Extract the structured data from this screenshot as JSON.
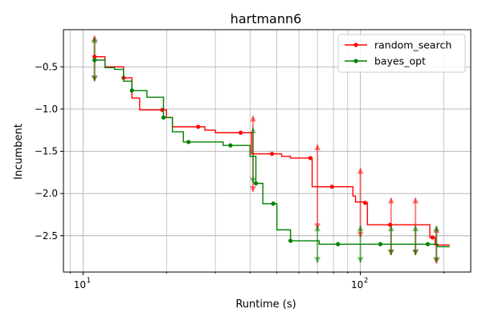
{
  "chart_data": {
    "type": "line",
    "title": "hartmann6",
    "xlabel": "Runtime (s)",
    "ylabel": "Incumbent",
    "x_scale": "log",
    "xlim": [
      8.5,
      250
    ],
    "ylim": [
      -2.93,
      -0.06
    ],
    "x_ticks": [
      {
        "value": 10,
        "label": "10",
        "sup": "1"
      },
      {
        "value": 100,
        "label": "10",
        "sup": "2"
      }
    ],
    "y_ticks": [
      -0.5,
      -1.0,
      -1.5,
      -2.0,
      -2.5
    ],
    "y_tick_labels": [
      "−0.5",
      "−1.0",
      "−1.5",
      "−2.0",
      "−2.5"
    ],
    "grid": true,
    "legend_position": "top-right",
    "series": [
      {
        "name": "random_search",
        "color": "#ff0000",
        "steps": [
          [
            11,
            -0.38
          ],
          [
            12,
            -0.5
          ],
          [
            14,
            -0.63
          ],
          [
            15,
            -0.87
          ],
          [
            16,
            -1.01
          ],
          [
            19,
            -1.01
          ],
          [
            19.3,
            -1.01
          ],
          [
            20,
            -1.1
          ],
          [
            21,
            -1.21
          ],
          [
            26,
            -1.21
          ],
          [
            27.5,
            -1.25
          ],
          [
            30,
            -1.28
          ],
          [
            37,
            -1.28
          ],
          [
            40.5,
            -1.53
          ],
          [
            48,
            -1.53
          ],
          [
            52,
            -1.56
          ],
          [
            56,
            -1.58
          ],
          [
            66,
            -1.58
          ],
          [
            67,
            -1.92
          ],
          [
            79,
            -1.92
          ],
          [
            94,
            -2.03
          ],
          [
            96,
            -2.1
          ],
          [
            104,
            -2.11
          ],
          [
            106,
            -2.37
          ],
          [
            128,
            -2.37
          ],
          [
            174,
            -2.37
          ],
          [
            178,
            -2.52
          ],
          [
            182,
            -2.52
          ],
          [
            186,
            -2.61
          ],
          [
            210,
            -2.61
          ]
        ],
        "markers": [
          [
            11,
            -0.38
          ],
          [
            14,
            -0.63
          ],
          [
            19.3,
            -1.01
          ],
          [
            26,
            -1.21
          ],
          [
            37,
            -1.28
          ],
          [
            48,
            -1.53
          ],
          [
            66,
            -1.58
          ],
          [
            79,
            -1.92
          ],
          [
            104,
            -2.11
          ],
          [
            128,
            -2.37
          ],
          [
            182,
            -2.52
          ]
        ],
        "error_bars": [
          [
            11,
            -0.13,
            -0.67
          ],
          [
            41,
            -1.08,
            -1.98
          ],
          [
            70,
            -1.42,
            -2.42
          ],
          [
            100,
            -1.7,
            -2.52
          ],
          [
            129,
            -2.05,
            -2.73
          ],
          [
            158,
            -2.05,
            -2.73
          ],
          [
            188,
            -2.4,
            -2.83
          ]
        ]
      },
      {
        "name": "bayes_opt",
        "color": "#008000",
        "steps": [
          [
            11,
            -0.42
          ],
          [
            12,
            -0.51
          ],
          [
            13,
            -0.53
          ],
          [
            14,
            -0.67
          ],
          [
            15,
            -0.78
          ],
          [
            16,
            -0.78
          ],
          [
            17,
            -0.86
          ],
          [
            18,
            -0.86
          ],
          [
            19.5,
            -1.1
          ],
          [
            21,
            -1.27
          ],
          [
            22,
            -1.27
          ],
          [
            23,
            -1.39
          ],
          [
            24,
            -1.39
          ],
          [
            31,
            -1.39
          ],
          [
            32,
            -1.43
          ],
          [
            34,
            -1.43
          ],
          [
            38,
            -1.43
          ],
          [
            40,
            -1.56
          ],
          [
            41,
            -1.56
          ],
          [
            42,
            -1.88
          ],
          [
            43,
            -1.88
          ],
          [
            44.5,
            -2.12
          ],
          [
            48.5,
            -2.12
          ],
          [
            50,
            -2.43
          ],
          [
            54,
            -2.43
          ],
          [
            56,
            -2.56
          ],
          [
            60,
            -2.56
          ],
          [
            70,
            -2.56
          ],
          [
            71,
            -2.6
          ],
          [
            83,
            -2.6
          ],
          [
            118,
            -2.6
          ],
          [
            150,
            -2.6
          ],
          [
            165,
            -2.6
          ],
          [
            175,
            -2.6
          ],
          [
            190,
            -2.63
          ],
          [
            210,
            -2.63
          ]
        ],
        "markers": [
          [
            11,
            -0.42
          ],
          [
            15,
            -0.78
          ],
          [
            19.5,
            -1.1
          ],
          [
            24,
            -1.39
          ],
          [
            34,
            -1.43
          ],
          [
            42,
            -1.88
          ],
          [
            48.5,
            -2.12
          ],
          [
            56,
            -2.56
          ],
          [
            83,
            -2.6
          ],
          [
            118,
            -2.6
          ],
          [
            175,
            -2.6
          ]
        ],
        "error_bars": [
          [
            11,
            -0.15,
            -0.67
          ],
          [
            41,
            -1.22,
            -1.88
          ],
          [
            70,
            -2.38,
            -2.82
          ],
          [
            100,
            -2.38,
            -2.82
          ],
          [
            129,
            -2.38,
            -2.73
          ],
          [
            158,
            -2.38,
            -2.73
          ],
          [
            188,
            -2.38,
            -2.82
          ]
        ]
      }
    ]
  }
}
